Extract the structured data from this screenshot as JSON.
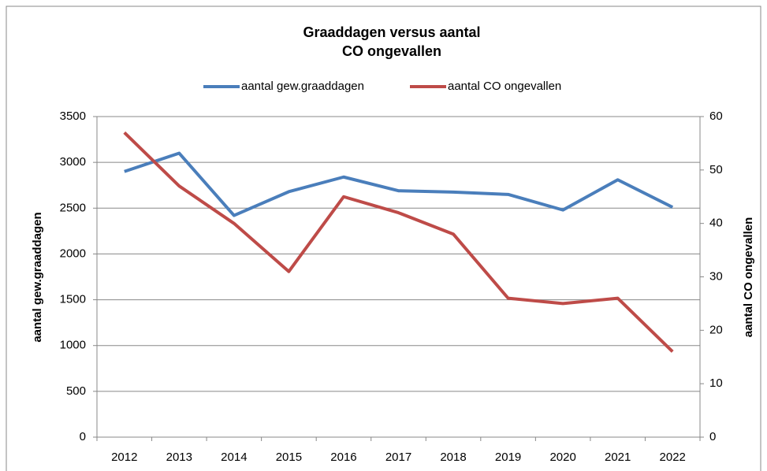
{
  "chart_data": {
    "type": "line",
    "title": [
      "Graaddagen  versus aantal",
      "CO ongevallen"
    ],
    "ylabel": "aantal gew.graaddagen",
    "y2label": "aantal CO ongevallen",
    "categories": [
      "2012",
      "2013",
      "2014",
      "2015",
      "2016",
      "2017",
      "2018",
      "2019",
      "2020",
      "2021",
      "2022"
    ],
    "series": [
      {
        "name": "aantal gew.graaddagen",
        "color": "#4a7ebb",
        "values": [
          2900,
          3100,
          2420,
          2680,
          2840,
          2690,
          2675,
          2650,
          2480,
          2810,
          2510
        ]
      },
      {
        "name": "aantal CO ongevallen",
        "color": "#be4b48",
        "axis": "y2",
        "values": [
          57,
          47,
          40,
          31,
          45,
          42,
          38,
          26,
          25,
          26,
          16
        ]
      }
    ],
    "ylim": [
      0,
      3500
    ],
    "yticks": [
      0,
      500,
      1000,
      1500,
      2000,
      2500,
      3000,
      3500
    ],
    "y2lim": [
      0,
      60
    ],
    "y2ticks": [
      0,
      10,
      20,
      30,
      40,
      50,
      60
    ],
    "grid": true,
    "legend": "top"
  }
}
